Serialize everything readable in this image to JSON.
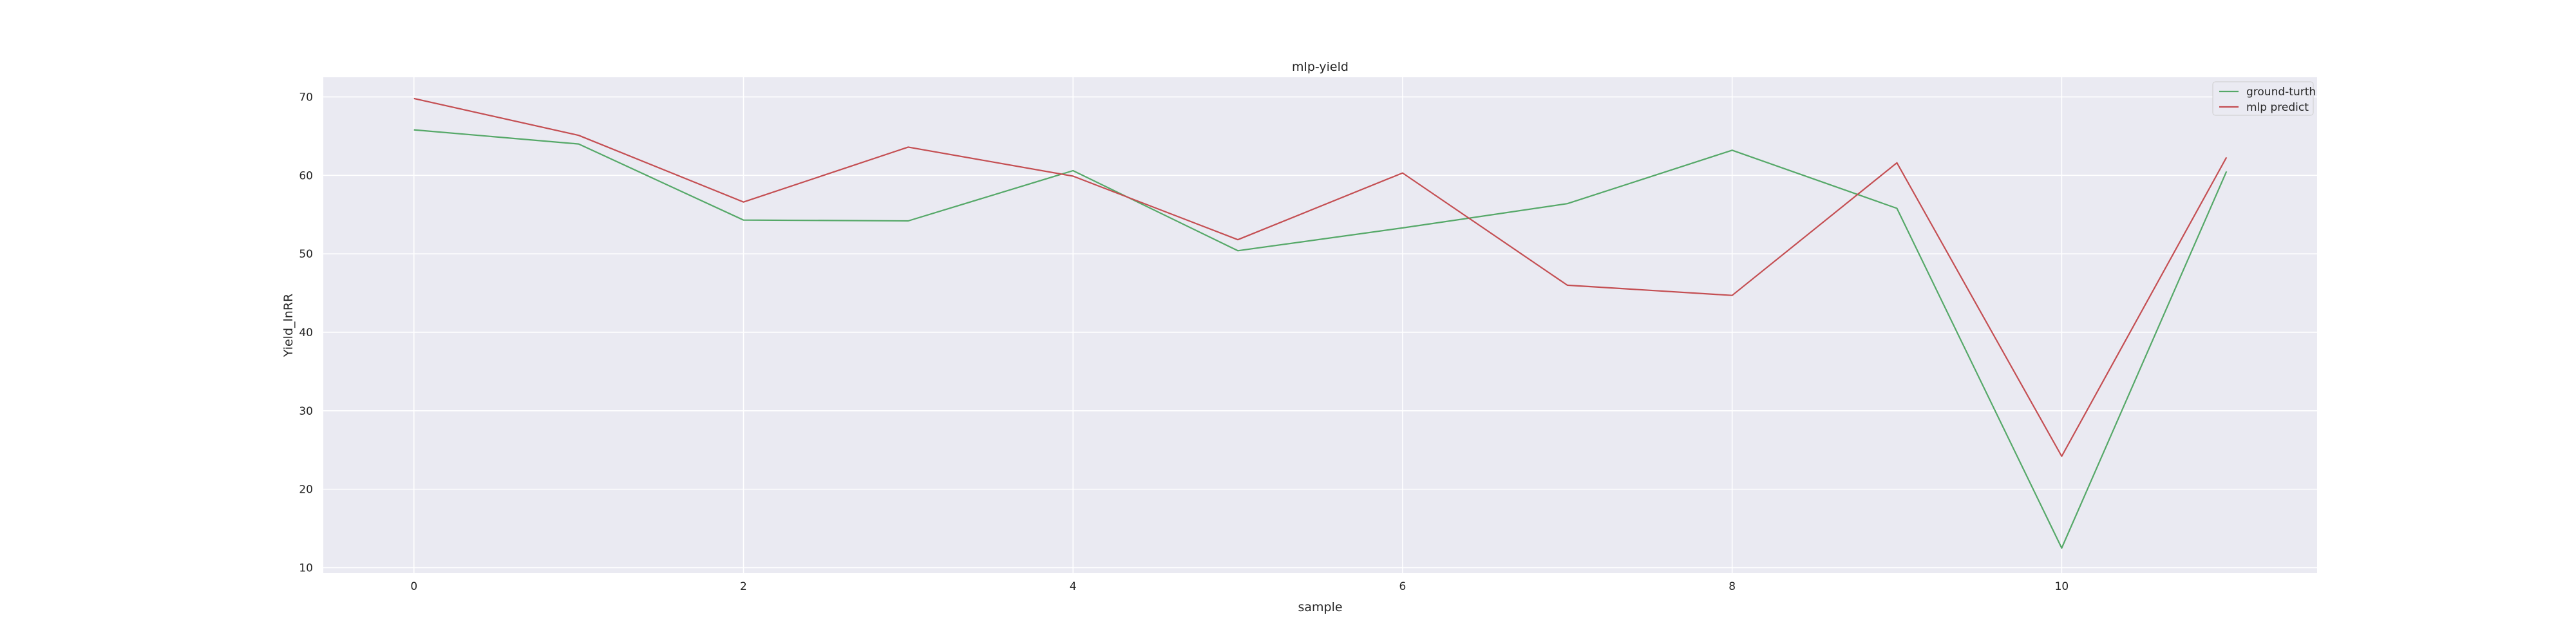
{
  "chart_data": {
    "type": "line",
    "title": "mlp-yield",
    "xlabel": "sample",
    "ylabel": "Yield_lnRR",
    "x": [
      0,
      1,
      2,
      3,
      4,
      5,
      6,
      7,
      8,
      9,
      10,
      11
    ],
    "xticks": [
      0,
      2,
      4,
      6,
      8,
      10
    ],
    "yticks": [
      10,
      20,
      30,
      40,
      50,
      60,
      70
    ],
    "xlim": [
      -0.55,
      11.55
    ],
    "ylim": [
      9.3,
      72.5
    ],
    "grid": true,
    "legend_position": "top-right",
    "colors": {
      "background": "#eaeaf2",
      "grid": "#ffffff",
      "text": "#262626"
    },
    "series": [
      {
        "name": "ground-turth",
        "color": "#55a868",
        "values": [
          65.8,
          64.0,
          54.3,
          54.2,
          60.6,
          50.4,
          53.3,
          56.4,
          63.2,
          55.8,
          12.5,
          60.5
        ]
      },
      {
        "name": "mlp predict",
        "color": "#c44e52",
        "values": [
          69.8,
          65.1,
          56.6,
          63.6,
          59.9,
          51.8,
          60.3,
          46.0,
          44.7,
          61.6,
          24.2,
          62.3
        ]
      }
    ]
  }
}
